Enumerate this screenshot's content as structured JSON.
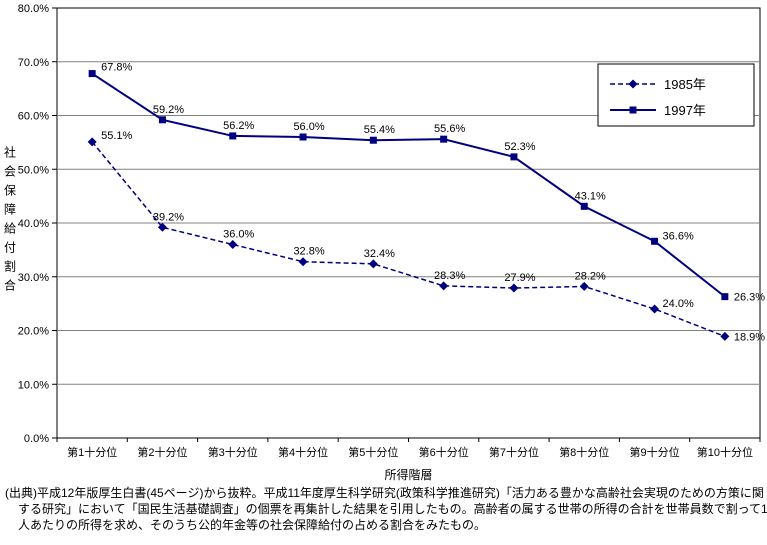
{
  "chart_data": {
    "type": "line",
    "categories": [
      "第1十分位",
      "第2十分位",
      "第3十分位",
      "第4十分位",
      "第5十分位",
      "第6十分位",
      "第7十分位",
      "第8十分位",
      "第9十分位",
      "第10十分位"
    ],
    "series": [
      {
        "name": "1985年",
        "values": [
          55.1,
          39.2,
          36.0,
          32.8,
          32.4,
          28.3,
          27.9,
          28.2,
          24.0,
          18.9
        ],
        "style": "dashed",
        "marker": "diamond"
      },
      {
        "name": "1997年",
        "values": [
          67.8,
          59.2,
          56.2,
          56.0,
          55.4,
          55.6,
          52.3,
          43.1,
          36.6,
          26.3
        ],
        "style": "solid",
        "marker": "square"
      }
    ],
    "xlabel": "所得階層",
    "ylabel": "社会保障給付割合",
    "ylim": [
      0,
      80
    ],
    "ytick_step": 10,
    "yticks": [
      "0.0%",
      "10.0%",
      "20.0%",
      "30.0%",
      "40.0%",
      "50.0%",
      "60.0%",
      "70.0%",
      "80.0%"
    ],
    "grid": true,
    "legend_position": "top-right",
    "line_color": "#000080",
    "grid_color": "#808080",
    "label_suffix": "%"
  },
  "footer": {
    "note": "(出典)平成12年版厚生白書(45ページ)から抜粋。平成11年度厚生科学研究(政策科学推進研究)「活力ある豊かな高齢社会実現のための方策に関する研究」において「国民生活基礎調査」の個票を再集計した結果を引用したもの。高齢者の属する世帯の所得の合計を世帯員数で割って1人あたりの所得を求め、そのうち公的年金等の社会保障給付の占める割合をみたもの。"
  }
}
